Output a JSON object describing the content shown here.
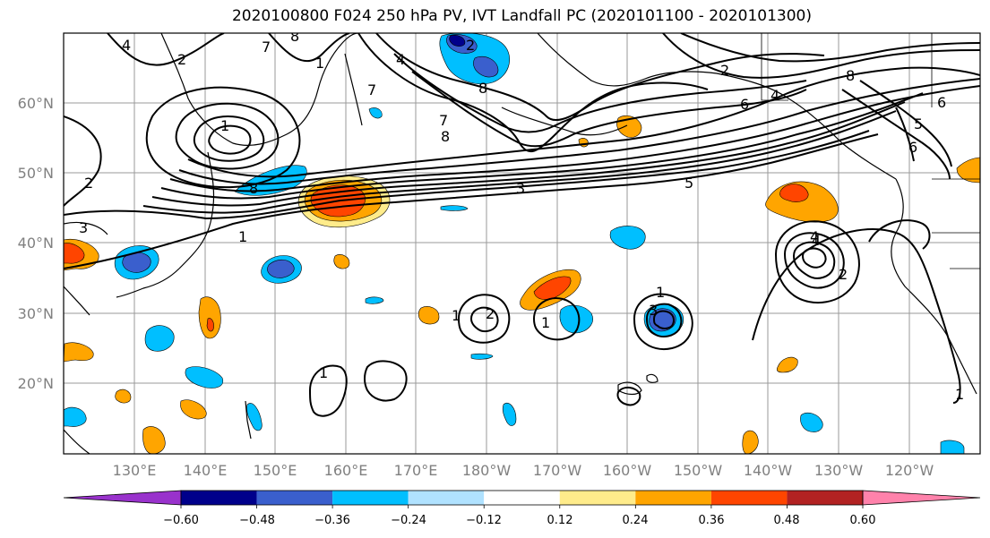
{
  "title": "2020100800 F024 250 hPa PV, IVT Landfall PC (2020101100 - 2020101300)",
  "latitude_labels": [
    "60°N",
    "50°N",
    "40°N",
    "30°N",
    "20°N"
  ],
  "longitude_labels": [
    "130°E",
    "140°E",
    "150°E",
    "160°E",
    "170°E",
    "180°W",
    "170°W",
    "160°W",
    "150°W",
    "140°W",
    "130°W",
    "120°W"
  ],
  "colorbar": {
    "tick_labels": [
      "−0.60",
      "−0.48",
      "−0.36",
      "−0.24",
      "−0.12",
      "0.12",
      "0.24",
      "0.36",
      "0.48",
      "0.60"
    ],
    "colors": [
      "#9932cc",
      "#00008b",
      "#3a5fcd",
      "#00bfff",
      "#b0e2ff",
      "#ffffff",
      "#ffec8b",
      "#ffa500",
      "#ff4500",
      "#b22222",
      "#ff82ab"
    ]
  },
  "contour_labels": [
    "4",
    "7",
    "4",
    "8",
    "2",
    "7",
    "1",
    "8",
    "1",
    "2",
    "8",
    "7",
    "8",
    "3",
    "1",
    "2",
    "2",
    "6",
    "4",
    "4",
    "5",
    "3",
    "6",
    "5",
    "6",
    "8",
    "1",
    "2",
    "1",
    "1",
    "1",
    "3",
    "4",
    "1",
    "2"
  ]
}
